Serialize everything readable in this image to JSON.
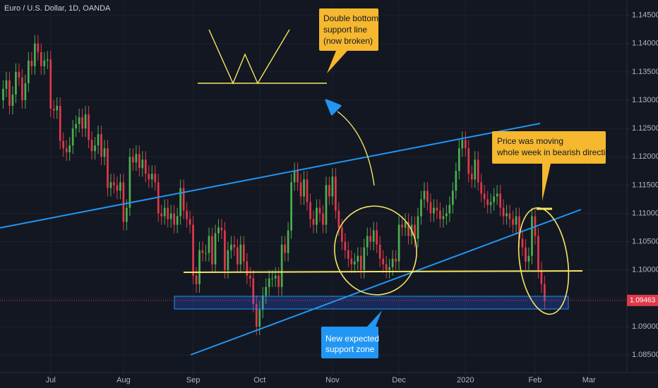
{
  "chart_data": {
    "type": "candlestick",
    "title": "Euro / U.S. Dollar, 1D, OANDA",
    "up_color": "#4caf50",
    "down_color": "#e0394a",
    "open": [
      1.13,
      1.132,
      1.1335,
      1.129,
      1.131,
      1.135,
      1.134,
      1.13,
      1.133,
      1.137,
      1.136,
      1.14,
      1.1385,
      1.136,
      1.137,
      1.1372,
      1.1285,
      1.1282,
      1.129,
      1.1228,
      1.1215,
      1.1208,
      1.122,
      1.125,
      1.1258,
      1.127,
      1.125,
      1.1275,
      1.123,
      1.121,
      1.122,
      1.124,
      1.12,
      1.1215,
      1.1145,
      1.1155,
      1.115,
      1.114,
      1.1155,
      1.1085,
      1.111,
      1.12,
      1.119,
      1.1205,
      1.118,
      1.1195,
      1.117,
      1.116,
      1.117,
      1.1155,
      1.11,
      1.1095,
      1.111,
      1.109,
      1.11,
      1.108,
      1.1095,
      1.1145,
      1.1105,
      1.109,
      1.108,
      1.099,
      1.0975,
      1.1035,
      1.103,
      1.103,
      1.106,
      1.101,
      1.1065,
      1.1075,
      1.107,
      1.1,
      1.1035,
      1.1045,
      1.104,
      1.101,
      1.1045,
      1.1015,
      1.099,
      1.0985,
      1.094,
      1.09,
      1.093,
      1.0955,
      1.097,
      1.0985,
      1.0985,
      1.099,
      1.097,
      1.1045,
      1.103,
      1.107,
      1.1155,
      1.1175,
      1.1155,
      1.113,
      1.116,
      1.112,
      1.109,
      1.108,
      1.111,
      1.11,
      1.108,
      1.115,
      1.113,
      1.1165,
      1.1105,
      1.1075,
      1.105,
      1.1035,
      1.102,
      1.101,
      1.1015,
      1.1025,
      1.1,
      1.104,
      1.106,
      1.105,
      1.107,
      1.1045,
      1.102,
      1.101,
      1.1,
      1.1005,
      1.102,
      1.1015,
      1.108,
      1.1075,
      1.1085,
      1.106,
      1.108,
      1.1055,
      1.1095,
      1.1125,
      1.114,
      1.112,
      1.11,
      1.111,
      1.1105,
      1.109,
      1.1095,
      1.11,
      1.1115,
      1.114,
      1.1175,
      1.1215,
      1.123,
      1.1215,
      1.117,
      1.116,
      1.1195,
      1.1155,
      1.1135,
      1.1125,
      1.1115,
      1.112,
      1.113,
      1.1135,
      1.111,
      1.1095,
      1.11,
      1.109,
      1.108,
      1.1095,
      1.1055,
      1.104,
      1.1015,
      1.1025,
      1.1095,
      1.106,
      1.1,
      1.0975
    ],
    "high": [
      1.1335,
      1.135,
      1.135,
      1.1325,
      1.1365,
      1.1365,
      1.1355,
      1.1345,
      1.1385,
      1.1385,
      1.1415,
      1.1415,
      1.14,
      1.1385,
      1.1387,
      1.1387,
      1.13,
      1.1305,
      1.1305,
      1.1243,
      1.123,
      1.1235,
      1.1265,
      1.1273,
      1.1285,
      1.1285,
      1.129,
      1.129,
      1.1245,
      1.1235,
      1.1255,
      1.1255,
      1.123,
      1.123,
      1.117,
      1.117,
      1.1165,
      1.117,
      1.117,
      1.1125,
      1.1215,
      1.1215,
      1.122,
      1.122,
      1.121,
      1.121,
      1.1185,
      1.1185,
      1.1185,
      1.117,
      1.1115,
      1.1125,
      1.1125,
      1.1115,
      1.1115,
      1.111,
      1.116,
      1.116,
      1.112,
      1.1105,
      1.1095,
      1.1005,
      1.105,
      1.105,
      1.1045,
      1.1075,
      1.1075,
      1.108,
      1.109,
      1.109,
      1.1085,
      1.105,
      1.106,
      1.106,
      1.1055,
      1.106,
      1.106,
      1.103,
      1.1005,
      1.1,
      1.0955,
      1.0945,
      1.097,
      1.0985,
      1.1,
      1.1,
      1.1005,
      1.1005,
      1.106,
      1.106,
      1.1085,
      1.117,
      1.119,
      1.119,
      1.117,
      1.1175,
      1.1175,
      1.1135,
      1.1105,
      1.1125,
      1.1125,
      1.1115,
      1.1165,
      1.1165,
      1.118,
      1.118,
      1.112,
      1.109,
      1.1065,
      1.105,
      1.1035,
      1.103,
      1.104,
      1.104,
      1.1055,
      1.1075,
      1.1075,
      1.1085,
      1.1085,
      1.106,
      1.1035,
      1.1025,
      1.102,
      1.1035,
      1.1035,
      1.1095,
      1.1095,
      1.11,
      1.11,
      1.1095,
      1.1095,
      1.111,
      1.114,
      1.1155,
      1.1155,
      1.1135,
      1.1125,
      1.1125,
      1.112,
      1.111,
      1.1115,
      1.113,
      1.1155,
      1.119,
      1.123,
      1.1245,
      1.1245,
      1.123,
      1.1185,
      1.121,
      1.121,
      1.117,
      1.115,
      1.114,
      1.1135,
      1.1145,
      1.115,
      1.115,
      1.1125,
      1.1115,
      1.1115,
      1.1105,
      1.111,
      1.111,
      1.107,
      1.1055,
      1.104,
      1.111,
      1.111,
      1.1075,
      1.1015,
      1.099
    ],
    "low": [
      1.1285,
      1.1305,
      1.1275,
      1.1275,
      1.1295,
      1.1325,
      1.1285,
      1.1285,
      1.1315,
      1.1345,
      1.1345,
      1.137,
      1.1345,
      1.1345,
      1.1355,
      1.127,
      1.1267,
      1.1267,
      1.1213,
      1.12,
      1.1193,
      1.1193,
      1.1205,
      1.1235,
      1.1243,
      1.1235,
      1.1235,
      1.1215,
      1.1195,
      1.1195,
      1.1205,
      1.1185,
      1.1185,
      1.113,
      1.113,
      1.1135,
      1.1125,
      1.1125,
      1.107,
      1.107,
      1.1095,
      1.1175,
      1.1175,
      1.1165,
      1.1165,
      1.1155,
      1.1145,
      1.1145,
      1.114,
      1.1085,
      1.108,
      1.108,
      1.1075,
      1.1075,
      1.1065,
      1.1065,
      1.108,
      1.109,
      1.1075,
      1.1065,
      1.0975,
      1.096,
      1.096,
      1.1015,
      1.1015,
      1.1015,
      1.0995,
      1.0995,
      1.105,
      1.1055,
      1.0985,
      1.0985,
      1.102,
      1.1025,
      1.0995,
      1.0995,
      1.1,
      1.0975,
      1.097,
      1.0925,
      1.0885,
      1.0885,
      1.0915,
      1.094,
      1.0955,
      1.097,
      1.097,
      1.0955,
      1.0955,
      1.1015,
      1.1015,
      1.1055,
      1.114,
      1.114,
      1.1115,
      1.1115,
      1.1105,
      1.1075,
      1.1065,
      1.1065,
      1.1085,
      1.1065,
      1.1065,
      1.1115,
      1.1115,
      1.109,
      1.106,
      1.1035,
      1.102,
      1.1005,
      1.0995,
      1.0995,
      1.1,
      1.0985,
      1.0985,
      1.1025,
      1.1035,
      1.1035,
      1.103,
      1.1005,
      1.0995,
      1.0985,
      1.0985,
      1.099,
      1.1,
      1.1,
      1.106,
      1.106,
      1.1045,
      1.1045,
      1.104,
      1.104,
      1.108,
      1.111,
      1.1105,
      1.1085,
      1.1085,
      1.109,
      1.1075,
      1.1075,
      1.108,
      1.1085,
      1.11,
      1.1125,
      1.116,
      1.12,
      1.12,
      1.1155,
      1.1145,
      1.1145,
      1.114,
      1.112,
      1.111,
      1.11,
      1.11,
      1.1105,
      1.1115,
      1.1095,
      1.108,
      1.108,
      1.1075,
      1.1065,
      1.1065,
      1.104,
      1.1025,
      1.1,
      1.1,
      1.101,
      1.1045,
      1.0985,
      1.096,
      1.093
    ],
    "close": [
      1.132,
      1.1335,
      1.129,
      1.131,
      1.135,
      1.134,
      1.13,
      1.133,
      1.137,
      1.136,
      1.14,
      1.1385,
      1.136,
      1.137,
      1.1372,
      1.1285,
      1.1282,
      1.129,
      1.1228,
      1.1215,
      1.1208,
      1.122,
      1.125,
      1.1258,
      1.127,
      1.125,
      1.1275,
      1.123,
      1.121,
      1.122,
      1.124,
      1.12,
      1.1215,
      1.1145,
      1.1155,
      1.115,
      1.114,
      1.1155,
      1.1085,
      1.111,
      1.12,
      1.119,
      1.1205,
      1.118,
      1.1195,
      1.117,
      1.116,
      1.117,
      1.1155,
      1.11,
      1.1095,
      1.111,
      1.109,
      1.11,
      1.108,
      1.1095,
      1.1145,
      1.1105,
      1.109,
      1.108,
      1.099,
      1.0975,
      1.1035,
      1.103,
      1.103,
      1.106,
      1.101,
      1.1065,
      1.1075,
      1.107,
      1.1,
      1.1035,
      1.1045,
      1.104,
      1.101,
      1.1045,
      1.1015,
      1.099,
      1.0985,
      1.094,
      1.09,
      1.093,
      1.0955,
      1.097,
      1.0985,
      1.0985,
      1.099,
      1.097,
      1.1045,
      1.103,
      1.107,
      1.1155,
      1.1175,
      1.1155,
      1.113,
      1.116,
      1.112,
      1.109,
      1.108,
      1.111,
      1.11,
      1.108,
      1.115,
      1.113,
      1.1165,
      1.1105,
      1.1075,
      1.105,
      1.1035,
      1.102,
      1.101,
      1.1015,
      1.1025,
      1.1,
      1.104,
      1.106,
      1.105,
      1.107,
      1.1045,
      1.102,
      1.101,
      1.1,
      1.1005,
      1.102,
      1.1015,
      1.108,
      1.1075,
      1.1085,
      1.106,
      1.108,
      1.1055,
      1.1095,
      1.1125,
      1.114,
      1.112,
      1.11,
      1.111,
      1.1105,
      1.109,
      1.1095,
      1.11,
      1.1115,
      1.114,
      1.1175,
      1.1215,
      1.123,
      1.1215,
      1.117,
      1.116,
      1.1195,
      1.1155,
      1.1135,
      1.1125,
      1.1115,
      1.112,
      1.113,
      1.1135,
      1.111,
      1.1095,
      1.11,
      1.109,
      1.108,
      1.1095,
      1.1055,
      1.104,
      1.1015,
      1.1025,
      1.1095,
      1.106,
      1.1,
      1.0975,
      1.0945
    ],
    "ylim": [
      1.0819,
      1.1477
    ],
    "yticks": [
      {
        "value": 1.085,
        "label": "1.08500"
      },
      {
        "value": 1.09,
        "label": "1.09000"
      },
      {
        "value": 1.095,
        "label": "1.09500"
      },
      {
        "value": 1.1,
        "label": "1.10000"
      },
      {
        "value": 1.105,
        "label": "1.10500"
      },
      {
        "value": 1.11,
        "label": "1.11000"
      },
      {
        "value": 1.115,
        "label": "1.11500"
      },
      {
        "value": 1.12,
        "label": "1.12000"
      },
      {
        "value": 1.125,
        "label": "1.12500"
      },
      {
        "value": 1.13,
        "label": "1.13000"
      },
      {
        "value": 1.135,
        "label": "1.13500"
      },
      {
        "value": 1.14,
        "label": "1.14000"
      },
      {
        "value": 1.145,
        "label": "1.14500"
      }
    ],
    "xlim": [
      -1,
      197
    ],
    "xticks": [
      {
        "value": 15,
        "label": "Jul"
      },
      {
        "value": 38,
        "label": "Aug"
      },
      {
        "value": 60,
        "label": "Sep"
      },
      {
        "value": 81,
        "label": "Oct"
      },
      {
        "value": 104,
        "label": "Nov"
      },
      {
        "value": 125,
        "label": "Dec"
      },
      {
        "value": 146,
        "label": "2020"
      },
      {
        "value": 168,
        "label": "Feb"
      },
      {
        "value": 185,
        "label": "Mar"
      }
    ],
    "grid": true,
    "last_price": 1.09463,
    "annotations": [
      [
        "Double bottom",
        "support line",
        "(now broken)"
      ],
      [
        "Price was moving",
        "whole week in bearish direction"
      ],
      [
        "New expected",
        "support zone"
      ]
    ]
  }
}
